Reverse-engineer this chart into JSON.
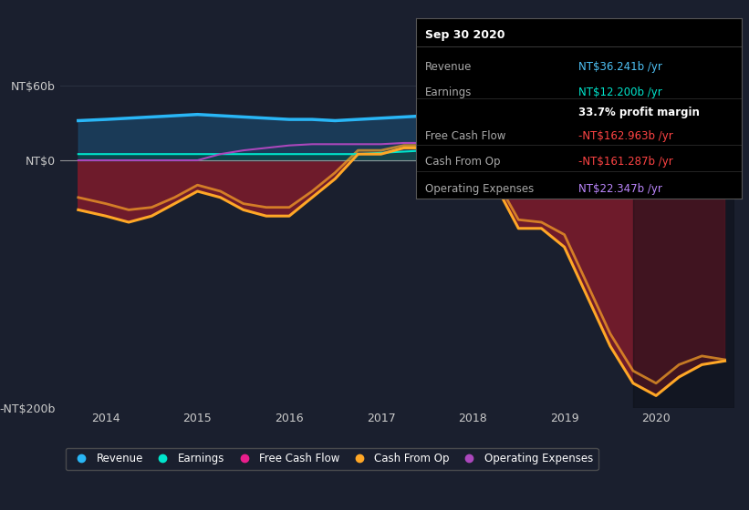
{
  "background_color": "#1a1f2e",
  "plot_bg_color": "#1a1f2e",
  "title_box": {
    "date": "Sep 30 2020",
    "rows": [
      {
        "label": "Revenue",
        "value": "NT$36.241b /yr",
        "value_color": "#4fc3f7"
      },
      {
        "label": "Earnings",
        "value": "NT$12.200b /yr",
        "value_color": "#00e5cc"
      },
      {
        "label": "",
        "value": "33.7% profit margin",
        "value_color": "#ffffff"
      },
      {
        "label": "Free Cash Flow",
        "value": "-NT$162.963b /yr",
        "value_color": "#ff4444"
      },
      {
        "label": "Cash From Op",
        "value": "-NT$161.287b /yr",
        "value_color": "#ff4444"
      },
      {
        "label": "Operating Expenses",
        "value": "NT$22.347b /yr",
        "value_color": "#bb86fc"
      }
    ]
  },
  "ylim": [
    -200,
    80
  ],
  "yticks": [
    60,
    0,
    -200
  ],
  "ytick_labels": [
    "NT$60b",
    "NT$0",
    "-NT$200b"
  ],
  "xlim": [
    2013.5,
    2020.85
  ],
  "xticks": [
    2014,
    2015,
    2016,
    2017,
    2018,
    2019,
    2020
  ],
  "legend_items": [
    {
      "label": "Revenue",
      "color": "#29b6f6"
    },
    {
      "label": "Earnings",
      "color": "#00e5cc"
    },
    {
      "label": "Free Cash Flow",
      "color": "#e91e8c"
    },
    {
      "label": "Cash From Op",
      "color": "#ffa726"
    },
    {
      "label": "Operating Expenses",
      "color": "#ab47bc"
    }
  ],
  "series": {
    "years": [
      2013.7,
      2014.0,
      2014.25,
      2014.5,
      2014.75,
      2015.0,
      2015.25,
      2015.5,
      2015.75,
      2016.0,
      2016.25,
      2016.5,
      2016.75,
      2017.0,
      2017.25,
      2017.5,
      2017.75,
      2018.0,
      2018.25,
      2018.5,
      2018.75,
      2019.0,
      2019.25,
      2019.5,
      2019.75,
      2020.0,
      2020.25,
      2020.5,
      2020.75
    ],
    "revenue": [
      32,
      33,
      34,
      35,
      36,
      37,
      36,
      35,
      34,
      33,
      33,
      32,
      33,
      34,
      35,
      36,
      37,
      40,
      42,
      43,
      41,
      38,
      37,
      37,
      37,
      37,
      37,
      36,
      36
    ],
    "earnings": [
      5,
      5,
      5,
      5,
      5,
      5,
      5,
      5,
      5,
      5,
      5,
      5,
      5,
      6,
      7,
      8,
      9,
      11,
      12,
      12,
      11,
      10,
      10,
      10,
      10,
      10,
      11,
      12,
      12
    ],
    "free_cash_flow": [
      -40,
      -45,
      -50,
      -45,
      -35,
      -25,
      -30,
      -40,
      -45,
      -45,
      -30,
      -15,
      5,
      5,
      10,
      10,
      5,
      -10,
      -20,
      -55,
      -55,
      -70,
      -110,
      -150,
      -180,
      -190,
      -175,
      -165,
      -162
    ],
    "cash_from_op": [
      -30,
      -35,
      -40,
      -38,
      -30,
      -20,
      -25,
      -35,
      -38,
      -38,
      -25,
      -10,
      8,
      8,
      12,
      12,
      8,
      -8,
      -15,
      -48,
      -50,
      -60,
      -100,
      -140,
      -170,
      -180,
      -165,
      -158,
      -161
    ],
    "operating_expenses": [
      0,
      0,
      0,
      0,
      0,
      0,
      5,
      8,
      10,
      12,
      13,
      13,
      13,
      13,
      14,
      14,
      14,
      15,
      16,
      16,
      16,
      17,
      18,
      19,
      20,
      21,
      21,
      22,
      22
    ]
  },
  "highlight_start": 2019.75
}
